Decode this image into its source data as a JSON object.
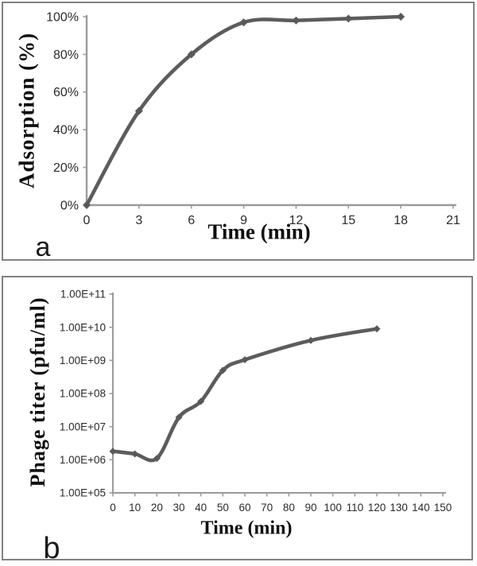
{
  "figure": {
    "background": "#ffffff",
    "panel_border_color": "#828282"
  },
  "colors": {
    "series_line": "#5c5c5c",
    "marker": "#595959",
    "axis": "#9b9b9b",
    "tick_label": "#2b2b2b"
  },
  "panels": [
    {
      "letter": "a"
    },
    {
      "letter": "b"
    }
  ],
  "chart_data": [
    {
      "type": "line",
      "panel": "a",
      "title": "",
      "xlabel": "Time (min)",
      "ylabel": "Adsorption (%)",
      "x": [
        0,
        3,
        6,
        9,
        12,
        15,
        18
      ],
      "y": [
        0,
        50,
        80,
        97,
        98,
        99,
        100
      ],
      "xlim": [
        0,
        21
      ],
      "xticks": [
        0,
        3,
        6,
        9,
        12,
        15,
        18,
        21
      ],
      "xtick_labels": [
        "0",
        "3",
        "6",
        "9",
        "12",
        "15",
        "18",
        "21"
      ],
      "ylim": [
        0,
        100
      ],
      "yscale": "linear",
      "yticks": [
        0,
        20,
        40,
        60,
        80,
        100
      ],
      "ytick_labels": [
        "0%",
        "20%",
        "40%",
        "60%",
        "80%",
        "100%"
      ],
      "grid": false,
      "legend": null,
      "marker": "diamond",
      "smooth": true
    },
    {
      "type": "line",
      "panel": "b",
      "title": "",
      "xlabel": "Time (min)",
      "ylabel": "Phage titer (pfu/ml)",
      "x": [
        0,
        10,
        20,
        30,
        40,
        50,
        60,
        90,
        120
      ],
      "y": [
        1800000.0,
        1500000.0,
        1100000.0,
        19000000.0,
        58000000.0,
        500000000.0,
        1050000000.0,
        4000000000.0,
        9000000000.0
      ],
      "xlim": [
        0,
        150
      ],
      "xticks": [
        0,
        10,
        20,
        30,
        40,
        50,
        60,
        70,
        80,
        90,
        100,
        110,
        120,
        130,
        140,
        150
      ],
      "xtick_labels": [
        "0",
        "10",
        "20",
        "30",
        "40",
        "50",
        "60",
        "70",
        "80",
        "90",
        "100",
        "110",
        "120",
        "130",
        "140",
        "150"
      ],
      "ylim": [
        100000.0,
        100000000000.0
      ],
      "yscale": "log",
      "yticks": [
        100000.0,
        1000000.0,
        10000000.0,
        100000000.0,
        1000000000.0,
        10000000000.0,
        100000000000.0
      ],
      "ytick_labels": [
        "1.00E+05",
        "1.00E+06",
        "1.00E+07",
        "1.00E+08",
        "1.00E+09",
        "1.00E+10",
        "1.00E+11"
      ],
      "grid": false,
      "legend": null,
      "marker": "diamond",
      "smooth": true
    }
  ]
}
